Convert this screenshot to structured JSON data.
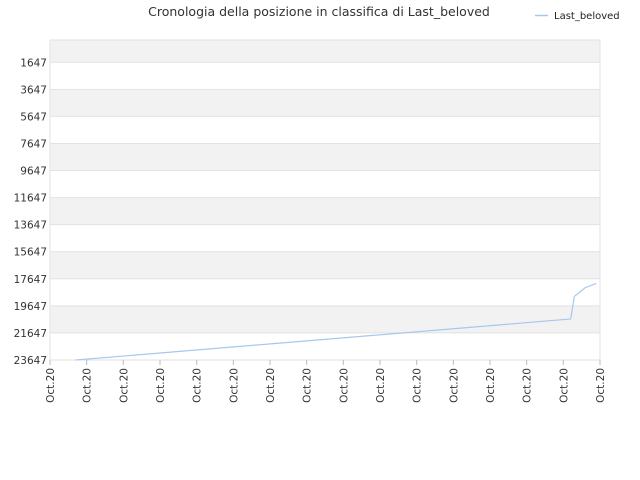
{
  "chart_data": {
    "type": "line",
    "title": "Cronologia della posizione in classifica di Last_beloved",
    "xlabel": "",
    "ylabel": "",
    "y_inverted": true,
    "ylim": [
      0,
      23647
    ],
    "y_ticks": [
      1647,
      3647,
      5647,
      7647,
      9647,
      11647,
      13647,
      15647,
      17647,
      19647,
      21647,
      23647
    ],
    "x_tick_labels": [
      "Oct.20",
      "Oct.20",
      "Oct.20",
      "Oct.20",
      "Oct.20",
      "Oct.20",
      "Oct.20",
      "Oct.20",
      "Oct.20",
      "Oct.20",
      "Oct.20",
      "Oct.20",
      "Oct.20",
      "Oct.20",
      "Oct.20",
      "Oct.20"
    ],
    "grid": true,
    "legend_position": "top-right",
    "series": [
      {
        "name": "Last_beloved",
        "color": "#a7c8ec",
        "x": [
          0.7,
          14.2,
          14.3,
          14.6,
          14.9
        ],
        "y": [
          23647,
          20620,
          18950,
          18300,
          17990
        ]
      }
    ]
  }
}
